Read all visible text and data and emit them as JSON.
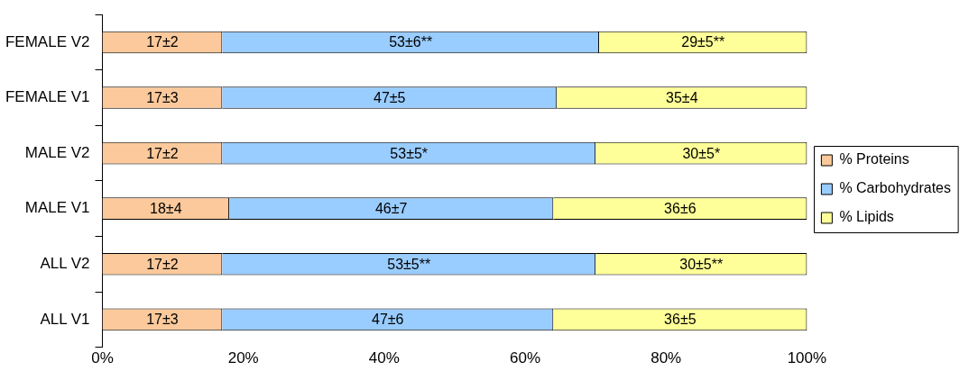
{
  "chart_data": {
    "type": "bar",
    "orientation": "horizontal",
    "stacked": true,
    "categories": [
      "FEMALE V2",
      "FEMALE V1",
      "MALE V2",
      "MALE V1",
      "ALL V2",
      "ALL V1"
    ],
    "series": [
      {
        "name": "% Proteins",
        "color": "#fbc99b",
        "values": [
          17,
          17,
          17,
          18,
          17,
          17
        ],
        "value_labels": [
          "17±2",
          "17±3",
          "17±2",
          "18±4",
          "17±2",
          "17±3"
        ]
      },
      {
        "name": "% Carbohydrates",
        "color": "#99ccff",
        "values": [
          53.5,
          47.5,
          53,
          46,
          53,
          47
        ],
        "value_labels": [
          "53±6**",
          "47±5",
          "53±5*",
          "46±7",
          "53±5**",
          "47±6"
        ]
      },
      {
        "name": "% Lipids",
        "color": "#ffff99",
        "values": [
          29.5,
          35.5,
          30,
          36,
          30,
          36
        ],
        "value_labels": [
          "29±5**",
          "35±4",
          "30±5*",
          "36±6",
          "30±5**",
          "36±5"
        ]
      }
    ],
    "xlim": [
      0,
      100
    ],
    "xticks": [
      {
        "value": 0,
        "label": "0%"
      },
      {
        "value": 20,
        "label": "20%"
      },
      {
        "value": 40,
        "label": "40%"
      },
      {
        "value": 60,
        "label": "60%"
      },
      {
        "value": 80,
        "label": "80%"
      },
      {
        "value": 100,
        "label": "100%"
      }
    ],
    "grid": false,
    "legend": "right"
  }
}
